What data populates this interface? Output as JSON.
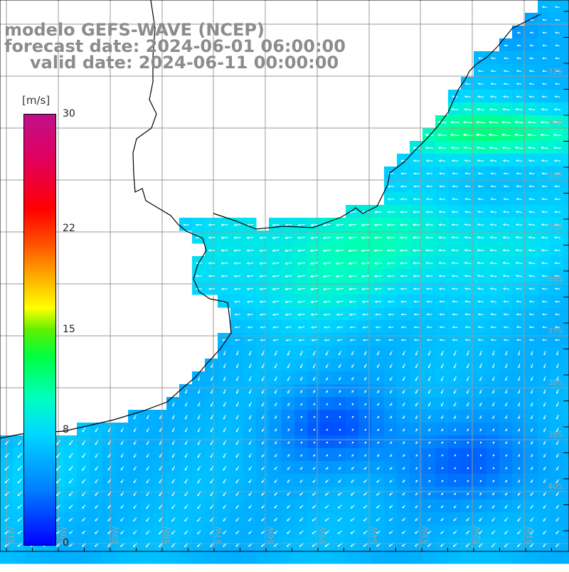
{
  "title": {
    "line1": "modelo GEFS-WAVE (NCEP)",
    "line2": "forecast date: 2024-06-01 06:00:00",
    "line3": "valid date: 2024-06-11 00:00:00"
  },
  "colorbar": {
    "unit": "[m/s]",
    "ticks": [
      {
        "label": "30",
        "value": 30
      },
      {
        "label": "22",
        "value": 22
      },
      {
        "label": "15",
        "value": 15
      },
      {
        "label": "8",
        "value": 8
      },
      {
        "label": "0",
        "value": 0
      }
    ]
  },
  "map": {
    "lat_labels": [
      "32S",
      "33S",
      "34S",
      "35S",
      "36S",
      "37S",
      "38S",
      "39S",
      "40S"
    ],
    "lon_labels": [
      "61W",
      "60W",
      "59W",
      "58W",
      "57W",
      "56W",
      "55W",
      "54W",
      "53W",
      "52W",
      "51W"
    ],
    "colors": {
      "land": "#ffffff",
      "coast": "#000000",
      "grid": "#999999",
      "arrow": "#ffffff"
    }
  }
}
